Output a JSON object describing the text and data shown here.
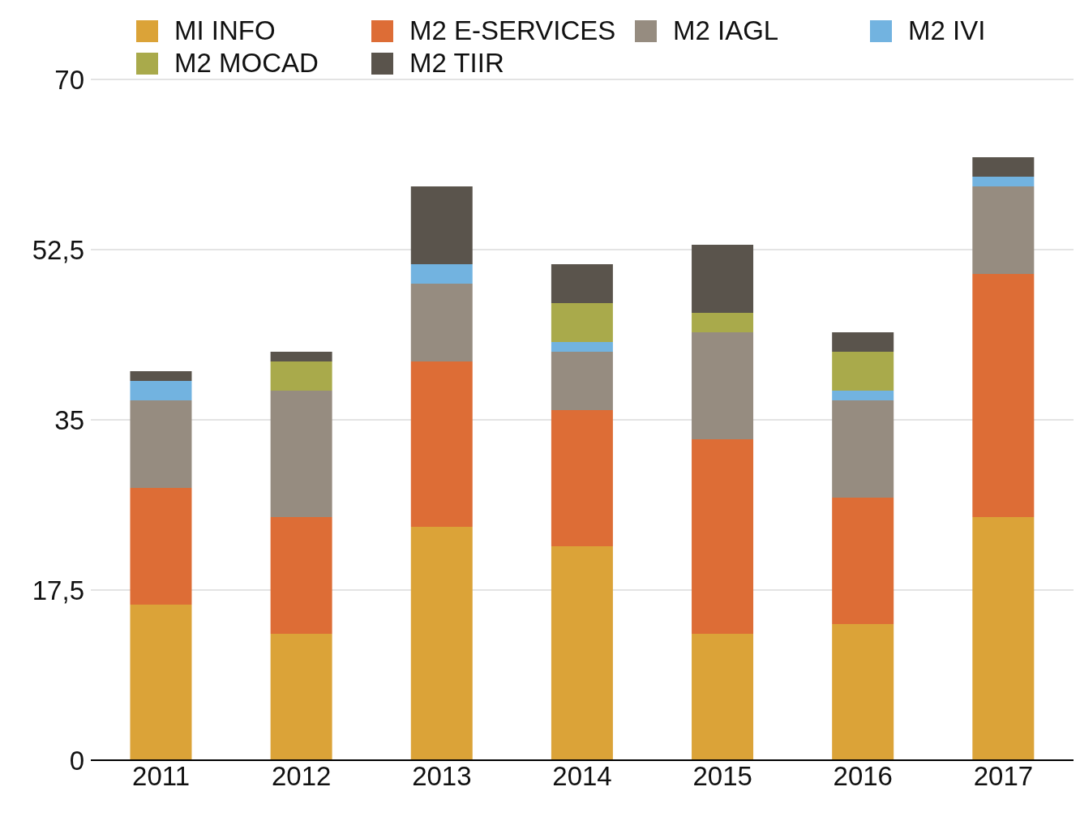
{
  "chart_data": {
    "type": "bar",
    "stacked": true,
    "categories": [
      "2011",
      "2012",
      "2013",
      "2014",
      "2015",
      "2016",
      "2017"
    ],
    "series": [
      {
        "name": "MI INFO",
        "color": "#dba338",
        "values": [
          16,
          13,
          24,
          22,
          13,
          14,
          25
        ]
      },
      {
        "name": "M2 E-SERVICES",
        "color": "#dd6d36",
        "values": [
          12,
          12,
          17,
          14,
          20,
          13,
          25
        ]
      },
      {
        "name": "M2 IAGL",
        "color": "#968c80",
        "values": [
          9,
          13,
          8,
          6,
          11,
          10,
          9
        ]
      },
      {
        "name": "M2 IVI",
        "color": "#72b3e0",
        "values": [
          2,
          0,
          2,
          1,
          0,
          1,
          1
        ]
      },
      {
        "name": "M2 MOCAD",
        "color": "#a9aa4b",
        "values": [
          0,
          3,
          0,
          4,
          2,
          4,
          0
        ]
      },
      {
        "name": "M2 TIIR",
        "color": "#5a544c",
        "values": [
          1,
          1,
          8,
          4,
          7,
          2,
          2
        ]
      }
    ],
    "ylim": [
      0,
      70
    ],
    "yticks": [
      0,
      {
        "value": 17.5,
        "label": "17,5"
      },
      35,
      {
        "value": 52.5,
        "label": "52,5"
      },
      70
    ],
    "grid": "y",
    "legend": "top"
  }
}
